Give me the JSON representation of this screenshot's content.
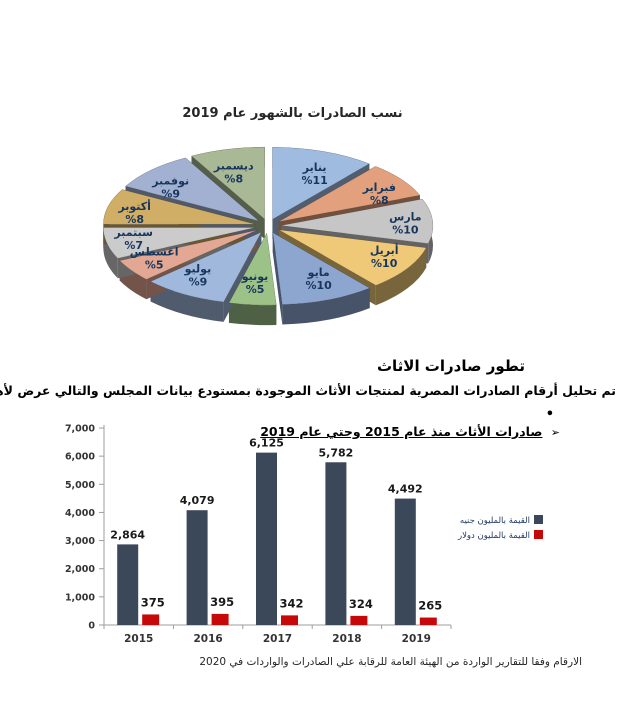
{
  "page": {
    "heading": "تطور صادرات الاثاث",
    "paragraph": "تم تحليل أرقام الصادرات المصرية لمنتجات الأثاث الموجودة بمستودع بيانات المجلس والتالي عرض لأهم نتائج التحليل",
    "bullet": "•",
    "arrow_bullet": "➢",
    "footnote": "الارقام وفقا للتقارير الواردة من الهيئة العامة للرقابة علي الصادرات والواردات في 2020"
  },
  "chart_data": [
    {
      "type": "pie",
      "style": "3d-exploded",
      "title": "نسب الصادرات بالشهور عام 2019",
      "labels": [
        "يناير",
        "فبراير",
        "مارس",
        "أبريل",
        "مايو",
        "يونيو",
        "يوليو",
        "اغسطس",
        "سبتمبر",
        "أكتوبر",
        "نوفمبر",
        "ديسمبر"
      ],
      "values": [
        11,
        8,
        10,
        10,
        10,
        5,
        9,
        5,
        7,
        8,
        9,
        8
      ],
      "percent_labels": [
        "%11",
        "%8",
        "%10",
        "%10",
        "%10",
        "%5",
        "%9",
        "%5",
        "%7",
        "%8",
        "%9",
        "%8"
      ],
      "colors": [
        "#9FBBDF",
        "#E2A07C",
        "#C6C6C6",
        "#EFC978",
        "#8CA6D0",
        "#9CC287",
        "#9FB8DC",
        "#E3A893",
        "#CBCBCB",
        "#D0AE66",
        "#A2B1D1",
        "#A9B996"
      ],
      "label_color": "#17365D",
      "legend": "none"
    },
    {
      "type": "bar",
      "title": "صادرات الأثاث منذ عام 2015 وحتي عام 2019",
      "categories": [
        "2015",
        "2016",
        "2017",
        "2018",
        "2019"
      ],
      "series": [
        {
          "name": "القيمة بالمليون جنيه",
          "color": "#3B4859",
          "values": [
            2864,
            4079,
            6125,
            5782,
            4492
          ],
          "value_labels": [
            "2,864",
            "4,079",
            "6,125",
            "5,782",
            "4,492"
          ]
        },
        {
          "name": "القيمة بالمليون دولار",
          "color": "#C70808",
          "values": [
            375,
            395,
            342,
            324,
            265
          ],
          "value_labels": [
            "375",
            "395",
            "342",
            "324",
            "265"
          ]
        }
      ],
      "ylim": [
        0,
        7000
      ],
      "y_tick_labels": [
        "7,000",
        "6,000",
        "5,000",
        "4,000",
        "3,000",
        "2,000",
        "1,000",
        "0"
      ],
      "grid": false,
      "legend_position": "right",
      "legend_text_color": "#1F3864",
      "axis_color": "#9e9e9e"
    }
  ]
}
